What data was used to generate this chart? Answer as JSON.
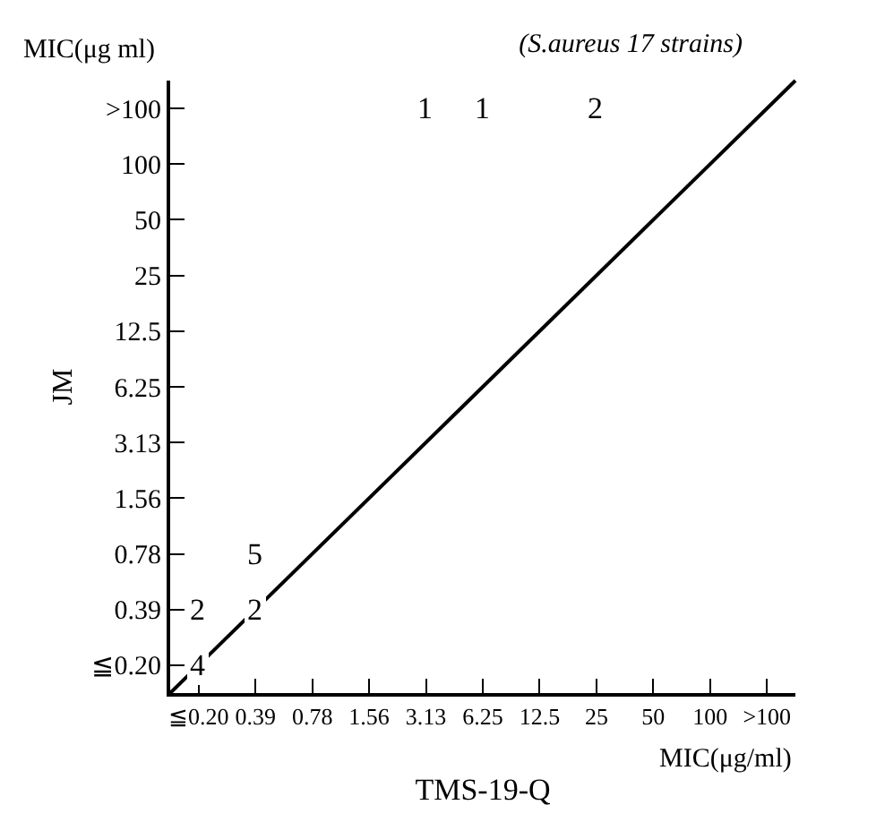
{
  "chart_data": {
    "type": "heatmap",
    "title": "(S.aureus 17 strains)",
    "xlabel": "TMS-19-Q",
    "ylabel": "JM",
    "annotations": [
      "MIC(μg ml)",
      "MIC(μg/ml)"
    ],
    "categories": [
      "≦0.20",
      "0.39",
      "0.78",
      "1.56",
      "3.13",
      "6.25",
      "12.5",
      "25",
      "50",
      "100",
      ">100"
    ],
    "y_categories": [
      ">100",
      "100",
      "50",
      "25",
      "12.5",
      "6.25",
      "3.13",
      "1.56",
      "0.78",
      "0.39",
      "≦0.20"
    ],
    "cells": [
      [
        null,
        null,
        null,
        null,
        1,
        1,
        null,
        2,
        null,
        null,
        null
      ],
      [
        null,
        null,
        null,
        null,
        null,
        null,
        null,
        null,
        null,
        null,
        null
      ],
      [
        null,
        null,
        null,
        null,
        null,
        null,
        null,
        null,
        null,
        null,
        null
      ],
      [
        null,
        null,
        null,
        null,
        null,
        null,
        null,
        null,
        null,
        null,
        null
      ],
      [
        null,
        null,
        null,
        null,
        null,
        null,
        null,
        null,
        null,
        null,
        null
      ],
      [
        null,
        null,
        null,
        null,
        null,
        null,
        null,
        null,
        null,
        null,
        null
      ],
      [
        null,
        null,
        null,
        null,
        null,
        null,
        null,
        null,
        null,
        null,
        null
      ],
      [
        null,
        null,
        null,
        null,
        null,
        null,
        null,
        null,
        null,
        null,
        null
      ],
      [
        null,
        5,
        null,
        null,
        null,
        null,
        null,
        null,
        null,
        null,
        null
      ],
      [
        2,
        2,
        null,
        null,
        null,
        null,
        null,
        null,
        null,
        null,
        null
      ],
      [
        4,
        null,
        null,
        null,
        null,
        null,
        null,
        null,
        null,
        null,
        null
      ]
    ],
    "cell_labels": [
      [
        null,
        null,
        null,
        null,
        "1",
        "1",
        null,
        "2",
        null,
        null,
        null
      ],
      [
        null,
        null,
        null,
        null,
        null,
        null,
        null,
        null,
        null,
        null,
        null
      ],
      [
        null,
        null,
        null,
        null,
        null,
        null,
        null,
        null,
        null,
        null,
        null
      ],
      [
        null,
        null,
        null,
        null,
        null,
        null,
        null,
        null,
        null,
        null,
        null
      ],
      [
        null,
        null,
        null,
        null,
        null,
        null,
        null,
        null,
        null,
        null,
        null
      ],
      [
        null,
        null,
        null,
        null,
        null,
        null,
        null,
        null,
        null,
        null,
        null
      ],
      [
        null,
        null,
        null,
        null,
        null,
        null,
        null,
        null,
        null,
        null,
        null
      ],
      [
        null,
        null,
        null,
        null,
        null,
        null,
        null,
        null,
        null,
        null,
        null
      ],
      [
        null,
        "5",
        null,
        null,
        null,
        null,
        null,
        null,
        null,
        null,
        null
      ],
      [
        "2",
        "2",
        null,
        null,
        null,
        null,
        null,
        null,
        null,
        null,
        null
      ],
      [
        "4",
        null,
        null,
        null,
        null,
        null,
        null,
        null,
        null,
        null,
        null
      ]
    ],
    "colors": [
      "#000000"
    ]
  }
}
